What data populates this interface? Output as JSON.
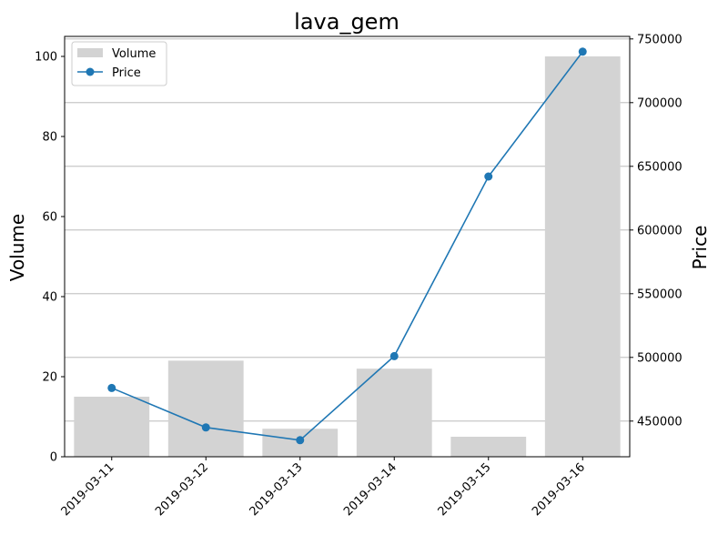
{
  "chart_data": {
    "type": "bar",
    "title": "lava_gem",
    "categories": [
      "2019-03-11",
      "2019-03-12",
      "2019-03-13",
      "2019-03-14",
      "2019-03-15",
      "2019-03-16"
    ],
    "xlabel": "",
    "ylabel": "Volume",
    "ylabel_right": "Price",
    "ylim": [
      0,
      105
    ],
    "ylim_right": [
      422000,
      752000
    ],
    "yticks": [
      0,
      20,
      40,
      60,
      80,
      100
    ],
    "yticks_right": [
      450000,
      500000,
      550000,
      600000,
      650000,
      700000,
      750000
    ],
    "grid": "right-axis horizontal",
    "legend": "top-left",
    "series": [
      {
        "name": "Volume",
        "kind": "bar",
        "axis": "left",
        "color": "#d3d3d3",
        "values": [
          15,
          24,
          7,
          22,
          5,
          100
        ]
      },
      {
        "name": "Price",
        "kind": "line",
        "axis": "right",
        "color": "#1f77b4",
        "marker": "circle",
        "values": [
          476000,
          445000,
          435000,
          501000,
          642000,
          740000
        ]
      }
    ]
  }
}
